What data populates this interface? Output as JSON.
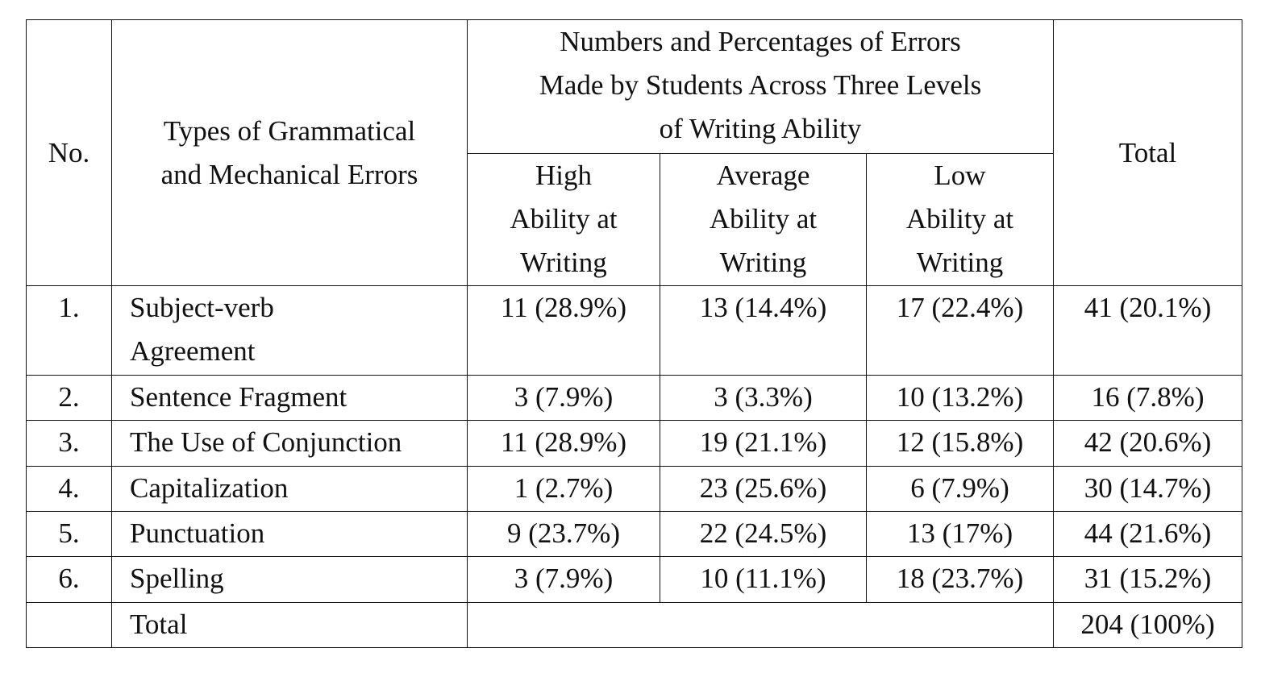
{
  "table": {
    "header": {
      "no": "No.",
      "types": [
        "Types of Grammatical",
        "and Mechanical Errors"
      ],
      "group": [
        "Numbers and Percentages of Errors",
        "Made by Students Across Three Levels",
        "of Writing Ability"
      ],
      "levels": [
        [
          "High",
          "Ability at",
          "Writing"
        ],
        [
          "Average",
          "Ability at",
          "Writing"
        ],
        [
          "Low",
          "Ability at",
          "Writing"
        ]
      ],
      "total": "Total"
    },
    "rows": [
      {
        "no": "1.",
        "type": [
          "Subject-verb",
          "Agreement"
        ],
        "high": "11 (28.9%)",
        "average": "13 (14.4%)",
        "low": "17 (22.4%)",
        "total": "41 (20.1%)"
      },
      {
        "no": "2.",
        "type": [
          "Sentence Fragment"
        ],
        "high": "3 (7.9%)",
        "average": "3 (3.3%)",
        "low": "10 (13.2%)",
        "total": "16 (7.8%)"
      },
      {
        "no": "3.",
        "type": [
          "The Use of Conjunction"
        ],
        "high": "11 (28.9%)",
        "average": "19 (21.1%)",
        "low": "12 (15.8%)",
        "total": "42 (20.6%)"
      },
      {
        "no": "4.",
        "type": [
          "Capitalization"
        ],
        "high": "1 (2.7%)",
        "average": "23 (25.6%)",
        "low": "6 (7.9%)",
        "total": "30 (14.7%)"
      },
      {
        "no": "5.",
        "type": [
          "Punctuation"
        ],
        "high": "9 (23.7%)",
        "average": "22 (24.5%)",
        "low": "13 (17%)",
        "total": "44 (21.6%)"
      },
      {
        "no": "6.",
        "type": [
          "Spelling"
        ],
        "high": "3 (7.9%)",
        "average": "10 (11.1%)",
        "low": "18 (23.7%)",
        "total": "31 (15.2%)"
      }
    ],
    "footer": {
      "label": "Total",
      "total": "204 (100%)"
    }
  }
}
